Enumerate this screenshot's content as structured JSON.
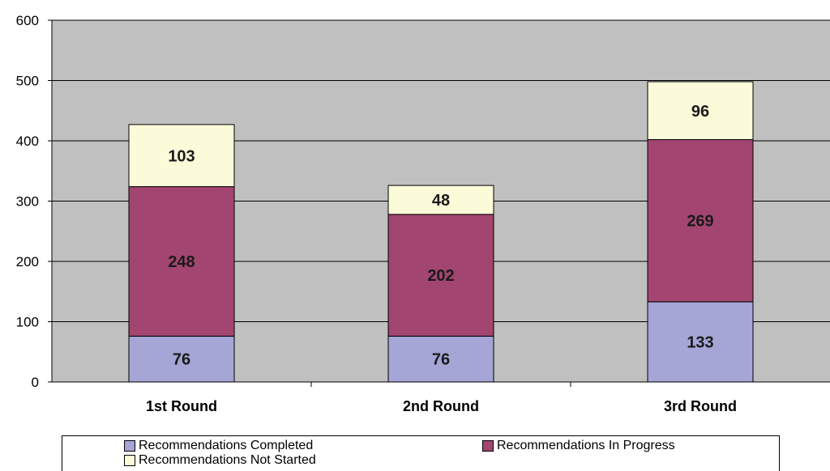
{
  "chart_data": {
    "type": "bar",
    "stacked": true,
    "categories": [
      "1st Round",
      "2nd Round",
      "3rd Round"
    ],
    "series": [
      {
        "name": "Recommendations Completed",
        "values": [
          76,
          76,
          133
        ],
        "color": "#a5a5d6"
      },
      {
        "name": "Recommendations In Progress",
        "values": [
          248,
          202,
          269
        ],
        "color": "#a34571"
      },
      {
        "name": "Recommendations Not Started",
        "values": [
          103,
          48,
          96
        ],
        "color": "#fbfbd9"
      }
    ],
    "yticks": [
      "0",
      "100",
      "200",
      "300",
      "400",
      "500",
      "600"
    ],
    "ylim": [
      0,
      600
    ],
    "grid": true,
    "plot_background": "#c0c0c0",
    "legend_position": "bottom",
    "title": "",
    "xlabel": "",
    "ylabel": ""
  }
}
